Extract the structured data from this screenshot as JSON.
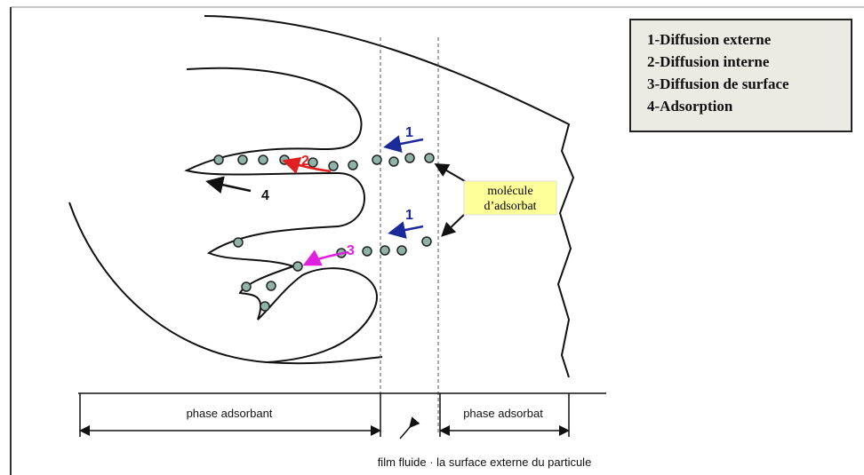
{
  "legend": {
    "items": [
      "1-Diffusion externe",
      "2-Diffusion interne",
      "3-Diffusion de surface",
      "4-Adsorption"
    ]
  },
  "arrow_labels": [
    "1",
    "1",
    "2",
    "3",
    "4"
  ],
  "molecule_label": {
    "lines": [
      "molécule",
      "d’adsorbat"
    ]
  },
  "regions": {
    "adsorbent": "phase adsorbant",
    "adsorbate": "phase adsorbat"
  },
  "caption": "film fluide · la surface externe du particule"
}
